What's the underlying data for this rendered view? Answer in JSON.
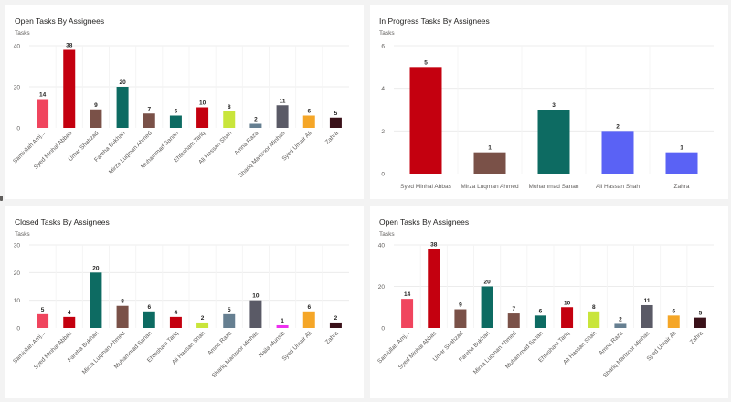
{
  "chart_data": [
    {
      "type": "bar",
      "title": "Open Tasks By Assignees",
      "ylabel": "Tasks",
      "ylim": [
        0,
        40
      ],
      "yticks": [
        0,
        20,
        40
      ],
      "categories": [
        "Samiullah Amj...",
        "Syed Minhal Abbas",
        "Umar Shahzad",
        "Fareha Bukhari",
        "Mirza Luqman Ahmed",
        "Muhammad Sanan",
        "Ehtesham Tariq",
        "Ali Hassan Shah",
        "Amna Raza",
        "Shariq Manzoor Minhas",
        "Syed Umair Ali",
        "Zahra"
      ],
      "values": [
        14,
        38,
        9,
        20,
        7,
        6,
        10,
        8,
        2,
        11,
        6,
        5
      ],
      "colors": [
        "#f0455e",
        "#c4000f",
        "#7a5148",
        "#0d6b62",
        "#7a5148",
        "#0d6b62",
        "#c4000f",
        "#c9e53b",
        "#667f91",
        "#5a5a66",
        "#f5a627",
        "#3a1119"
      ]
    },
    {
      "type": "bar",
      "title": "In Progress Tasks By Assignees",
      "ylabel": "Tasks",
      "ylim": [
        0,
        6
      ],
      "yticks": [
        0,
        2,
        4,
        6
      ],
      "categories": [
        "Syed Minhal Abbas",
        "Mirza Luqman Ahmed",
        "Muhammad Sanan",
        "Ali Hassan Shah",
        "Zahra"
      ],
      "values": [
        5,
        1,
        3,
        2,
        1
      ],
      "colors": [
        "#c4000f",
        "#7a5148",
        "#0d6b62",
        "#5a62f5",
        "#5a62f5"
      ]
    },
    {
      "type": "bar",
      "title": "Closed Tasks By Assignees",
      "ylabel": "Tasks",
      "ylim": [
        0,
        30
      ],
      "yticks": [
        0,
        10,
        20,
        30
      ],
      "categories": [
        "Samiullah Amj...",
        "Syed Minhal Abbas",
        "Fareha Bukhari",
        "Mirza Luqman Ahmed",
        "Muhammad Sanan",
        "Ehtesham Tariq",
        "Ali Hassan Shah",
        "Amna Raza",
        "Shariq Manzoor Minhas",
        "Naila Munsib",
        "Syed Umair Ali",
        "Zahra"
      ],
      "values": [
        5,
        4,
        20,
        8,
        6,
        4,
        2,
        5,
        10,
        1,
        6,
        2
      ],
      "colors": [
        "#f0455e",
        "#c4000f",
        "#0d6b62",
        "#7a5148",
        "#0d6b62",
        "#c4000f",
        "#c9e53b",
        "#667f91",
        "#5a5a66",
        "#ee2ff0",
        "#f5a627",
        "#3a1119"
      ]
    },
    {
      "type": "bar",
      "title": "Open Tasks By Assignees",
      "ylabel": "Tasks",
      "ylim": [
        0,
        40
      ],
      "yticks": [
        0,
        20,
        40
      ],
      "categories": [
        "Samiullah Amj...",
        "Syed Minhal Abbas",
        "Umar Shahzad",
        "Fareha Bukhari",
        "Mirza Luqman Ahmed",
        "Muhammad Sanan",
        "Ehtesham Tariq",
        "Ali Hassan Shah",
        "Amna Raza",
        "Shariq Manzoor Minhas",
        "Syed Umair Ali",
        "Zahra"
      ],
      "values": [
        14,
        38,
        9,
        20,
        7,
        6,
        10,
        8,
        2,
        11,
        6,
        5
      ],
      "colors": [
        "#f0455e",
        "#c4000f",
        "#7a5148",
        "#0d6b62",
        "#7a5148",
        "#0d6b62",
        "#c4000f",
        "#c9e53b",
        "#667f91",
        "#5a5a66",
        "#f5a627",
        "#3a1119"
      ]
    }
  ]
}
